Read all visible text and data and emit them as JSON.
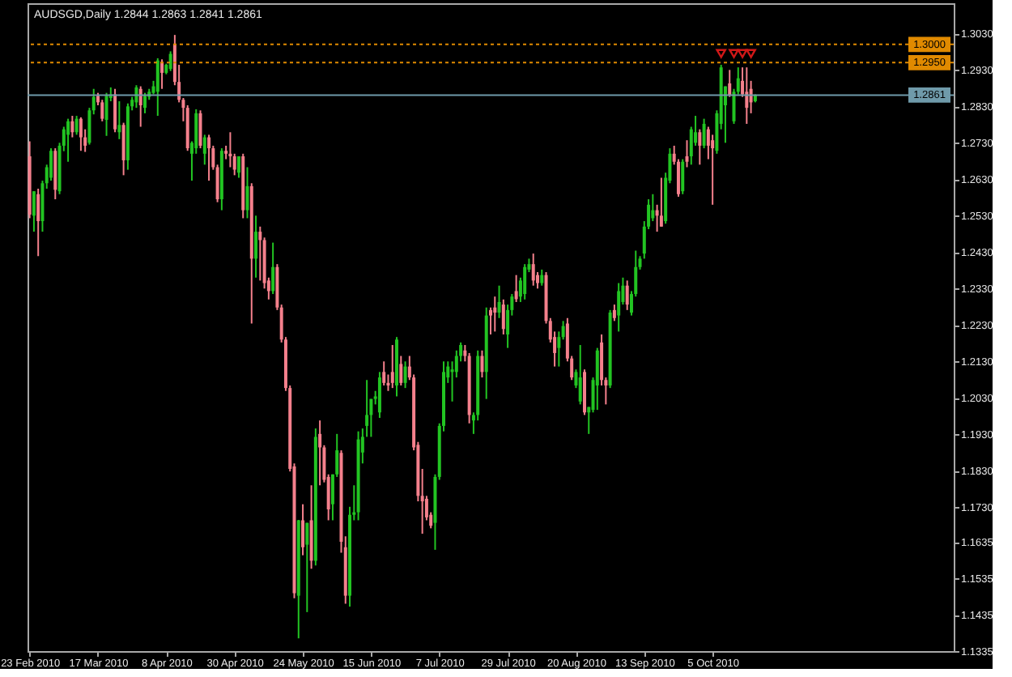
{
  "chart_data": {
    "type": "candlestick",
    "title": "AUDSGD,Daily  1.2844 1.2863 1.2841 1.2861",
    "categories": [
      "23 Feb 2010",
      null,
      null,
      null,
      null,
      null,
      null,
      null,
      null,
      null,
      null,
      null,
      null,
      null,
      null,
      null,
      "17 Mar 2010",
      null,
      null,
      null,
      null,
      null,
      null,
      null,
      null,
      null,
      null,
      null,
      null,
      null,
      null,
      null,
      "8 Apr 2010",
      null,
      null,
      null,
      null,
      null,
      null,
      null,
      null,
      null,
      null,
      null,
      null,
      null,
      null,
      null,
      "30 Apr 2010",
      null,
      null,
      null,
      null,
      null,
      null,
      null,
      null,
      null,
      null,
      null,
      null,
      null,
      null,
      null,
      "24 May 2010",
      null,
      null,
      null,
      null,
      null,
      null,
      null,
      null,
      null,
      null,
      null,
      null,
      null,
      null,
      null,
      "15 Jun 2010",
      null,
      null,
      null,
      null,
      null,
      null,
      null,
      null,
      null,
      null,
      null,
      null,
      null,
      null,
      null,
      "7 Jul 2010",
      null,
      null,
      null,
      null,
      null,
      null,
      null,
      null,
      null,
      null,
      null,
      null,
      null,
      null,
      null,
      "29 Jul 2010",
      null,
      null,
      null,
      null,
      null,
      null,
      null,
      null,
      null,
      null,
      null,
      null,
      null,
      null,
      null,
      "20 Aug 2010",
      null,
      null,
      null,
      null,
      null,
      null,
      null,
      null,
      null,
      null,
      null,
      null,
      null,
      null,
      null,
      "13 Sep 2010",
      null,
      null,
      null,
      null,
      null,
      null,
      null,
      null,
      null,
      null,
      null,
      null,
      null,
      null,
      null,
      "5 Oct 2010",
      null,
      null,
      null,
      null,
      null,
      null,
      null,
      null,
      null,
      null,
      null,
      null,
      null,
      null,
      null,
      null,
      null,
      null,
      null,
      null,
      null,
      null,
      null,
      null,
      null,
      null,
      null,
      null,
      null,
      null,
      null,
      null,
      null,
      null,
      null,
      null,
      null,
      null,
      null,
      null,
      null,
      null,
      null,
      null,
      null,
      null,
      null,
      null,
      null,
      null,
      null,
      null,
      null,
      null,
      null,
      null
    ],
    "ohlc": [
      [
        1.2693,
        1.2734,
        1.2523,
        1.2533
      ],
      [
        1.253,
        1.2597,
        1.2486,
        1.2597
      ],
      [
        1.2589,
        1.2604,
        1.2419,
        1.2515
      ],
      [
        1.2515,
        1.2626,
        1.2486,
        1.2619
      ],
      [
        1.2619,
        1.267,
        1.2604,
        1.2663
      ],
      [
        1.2634,
        1.2715,
        1.2626,
        1.2708
      ],
      [
        1.2708,
        1.2715,
        1.2575,
        1.2601
      ],
      [
        1.2597,
        1.273,
        1.2589,
        1.2722
      ],
      [
        1.2722,
        1.2774,
        1.2707,
        1.2767
      ],
      [
        1.2752,
        1.2796,
        1.2678,
        1.2789
      ],
      [
        1.2789,
        1.2804,
        1.2745,
        1.2759
      ],
      [
        1.2759,
        1.2804,
        1.2752,
        1.2796
      ],
      [
        1.2796,
        1.28,
        1.2708,
        1.2745
      ],
      [
        1.2745,
        1.2767,
        1.2705,
        1.2722
      ],
      [
        1.273,
        1.2826,
        1.2725,
        1.2819
      ],
      [
        1.2819,
        1.2878,
        1.2808,
        1.2856
      ],
      [
        1.2859,
        1.2867,
        1.2833,
        1.2841
      ],
      [
        1.2841,
        1.2848,
        1.2789,
        1.2796
      ],
      [
        1.2793,
        1.2867,
        1.2749,
        1.2859
      ],
      [
        1.2853,
        1.2882,
        1.2844,
        1.2863
      ],
      [
        1.2863,
        1.2878,
        1.2759,
        1.2767
      ],
      [
        1.2759,
        1.2844,
        1.274,
        1.2779
      ],
      [
        1.2779,
        1.2785,
        1.2641,
        1.2682
      ],
      [
        1.2682,
        1.2838,
        1.2656,
        1.283
      ],
      [
        1.283,
        1.2856,
        1.2819,
        1.2848
      ],
      [
        1.2841,
        1.2888,
        1.2826,
        1.2882
      ],
      [
        1.2878,
        1.2885,
        1.2774,
        1.2833
      ],
      [
        1.2826,
        1.2867,
        1.2811,
        1.2859
      ],
      [
        1.2856,
        1.2878,
        1.2848,
        1.287
      ],
      [
        1.2867,
        1.29,
        1.2863,
        1.2885
      ],
      [
        1.287,
        1.2962,
        1.2804,
        1.2956
      ],
      [
        1.2952,
        1.2959,
        1.2878,
        1.2922
      ],
      [
        1.2922,
        1.2947,
        1.2918,
        1.2944
      ],
      [
        1.2933,
        1.2981,
        1.2927,
        1.2974
      ],
      [
        1.3001,
        1.3026,
        1.2888,
        1.2897
      ],
      [
        1.2897,
        1.2944,
        1.2841,
        1.2848
      ],
      [
        1.2848,
        1.2853,
        1.2789,
        1.2826
      ],
      [
        1.2826,
        1.2833,
        1.2708,
        1.2715
      ],
      [
        1.27,
        1.2734,
        1.2626,
        1.273
      ],
      [
        1.2715,
        1.2822,
        1.27,
        1.2811
      ],
      [
        1.2811,
        1.2819,
        1.2715,
        1.2722
      ],
      [
        1.27,
        1.2752,
        1.267,
        1.2745
      ],
      [
        1.2745,
        1.2752,
        1.2626,
        1.2715
      ],
      [
        1.2715,
        1.2722,
        1.2656,
        1.2663
      ],
      [
        1.2663,
        1.267,
        1.2567,
        1.2575
      ],
      [
        1.2575,
        1.2715,
        1.2545,
        1.2708
      ],
      [
        1.2708,
        1.2722,
        1.2685,
        1.27
      ],
      [
        1.27,
        1.2759,
        1.2663,
        1.2693
      ],
      [
        1.2693,
        1.27,
        1.2641,
        1.2656
      ],
      [
        1.2648,
        1.2693,
        1.2634,
        1.2693
      ],
      [
        1.2693,
        1.27,
        1.2523,
        1.2545
      ],
      [
        1.2545,
        1.2663,
        1.2523,
        1.2611
      ],
      [
        1.2611,
        1.2619,
        1.2234,
        1.2412
      ],
      [
        1.2412,
        1.253,
        1.236,
        1.2486
      ],
      [
        1.2486,
        1.25,
        1.2352,
        1.2463
      ],
      [
        1.2463,
        1.247,
        1.233,
        1.2345
      ],
      [
        1.2352,
        1.236,
        1.23,
        1.2323
      ],
      [
        1.2323,
        1.2456,
        1.2315,
        1.2389
      ],
      [
        1.2389,
        1.2397,
        1.2271,
        1.2278
      ],
      [
        1.2278,
        1.2286,
        1.2182,
        1.219
      ],
      [
        1.219,
        1.2197,
        1.2049,
        1.2057
      ],
      [
        1.2057,
        1.2064,
        1.1828,
        1.1835
      ],
      [
        1.1842,
        1.185,
        1.148,
        1.1494
      ],
      [
        1.1487,
        1.1695,
        1.137,
        1.1694
      ],
      [
        1.1694,
        1.1738,
        1.1598,
        1.162
      ],
      [
        1.1627,
        1.1687,
        1.1442,
        1.1687
      ],
      [
        1.1694,
        1.179,
        1.1561,
        1.1583
      ],
      [
        1.1583,
        1.1946,
        1.157,
        1.1923
      ],
      [
        1.1931,
        1.1968,
        1.179,
        1.1894
      ],
      [
        1.1894,
        1.19,
        1.1798,
        1.1805
      ],
      [
        1.1813,
        1.182,
        1.1694,
        1.1724
      ],
      [
        1.1738,
        1.182,
        1.1694,
        1.182
      ],
      [
        1.182,
        1.1931,
        1.1813,
        1.1886
      ],
      [
        1.1879,
        1.1886,
        1.1605,
        1.1635
      ],
      [
        1.162,
        1.165,
        1.1465,
        1.1487
      ],
      [
        1.1487,
        1.1731,
        1.1457,
        1.1709
      ],
      [
        1.1709,
        1.179,
        1.1694,
        1.1716
      ],
      [
        1.1716,
        1.1938,
        1.1694,
        1.1916
      ],
      [
        1.188,
        1.1946,
        1.185,
        1.1923
      ],
      [
        1.1953,
        1.2079,
        1.1923,
        1.1983
      ],
      [
        1.1983,
        1.2027,
        1.1923,
        1.2027
      ],
      [
        1.2027,
        1.2049,
        1.2012,
        1.2034
      ],
      [
        1.199,
        1.2101,
        1.1975,
        1.2086
      ],
      [
        1.2101,
        1.213,
        1.2064,
        1.2071
      ],
      [
        1.2071,
        1.2094,
        1.2049,
        1.2064
      ],
      [
        1.2101,
        1.2175,
        1.2057,
        1.2071
      ],
      [
        1.2064,
        1.2197,
        1.2034,
        1.219
      ],
      [
        1.2123,
        1.2145,
        1.2064,
        1.2071
      ],
      [
        1.2071,
        1.213,
        1.2057,
        1.2116
      ],
      [
        1.2116,
        1.2145,
        1.2079,
        1.2086
      ],
      [
        1.2086,
        1.2094,
        1.1886,
        1.1894
      ],
      [
        1.1901,
        1.1909,
        1.1746,
        1.1761
      ],
      [
        1.1761,
        1.1835,
        1.1657,
        1.1746
      ],
      [
        1.1753,
        1.1761,
        1.1694,
        1.1702
      ],
      [
        1.1709,
        1.1716,
        1.1672,
        1.1679
      ],
      [
        1.1687,
        1.182,
        1.1613,
        1.1813
      ],
      [
        1.1813,
        1.196,
        1.1805,
        1.1953
      ],
      [
        1.1953,
        1.213,
        1.1938,
        1.2101
      ],
      [
        1.2086,
        1.213,
        1.2071,
        1.2116
      ],
      [
        1.2101,
        1.213,
        1.202,
        1.2108
      ],
      [
        1.2101,
        1.216,
        1.2086,
        1.2145
      ],
      [
        1.2145,
        1.2182,
        1.213,
        1.2175
      ],
      [
        1.216,
        1.2175,
        1.213,
        1.2145
      ],
      [
        1.2145,
        1.2153,
        1.196,
        1.1983
      ],
      [
        1.1968,
        1.199,
        1.1931,
        1.1983
      ],
      [
        1.1983,
        1.216,
        1.1968,
        1.2145
      ],
      [
        1.2145,
        1.216,
        1.2086,
        1.2101
      ],
      [
        1.2101,
        1.2278,
        1.2027,
        1.2256
      ],
      [
        1.2271,
        1.2278,
        1.2204,
        1.2256
      ],
      [
        1.2278,
        1.2308,
        1.2212,
        1.2264
      ],
      [
        1.2264,
        1.2338,
        1.2249,
        1.2293
      ],
      [
        1.2286,
        1.23,
        1.2204,
        1.2219
      ],
      [
        1.2204,
        1.2286,
        1.2167,
        1.2271
      ],
      [
        1.2271,
        1.2315,
        1.2256,
        1.2308
      ],
      [
        1.2323,
        1.2367,
        1.2293,
        1.2301
      ],
      [
        1.2308,
        1.236,
        1.2293,
        1.2352
      ],
      [
        1.2315,
        1.2397,
        1.23,
        1.2389
      ],
      [
        1.2382,
        1.2412,
        1.2375,
        1.2397
      ],
      [
        1.2397,
        1.2426,
        1.2338,
        1.2352
      ],
      [
        1.2367,
        1.2375,
        1.233,
        1.2345
      ],
      [
        1.2345,
        1.2382,
        1.2338,
        1.2367
      ],
      [
        1.2367,
        1.2375,
        1.2234,
        1.2241
      ],
      [
        1.2241,
        1.2249,
        1.2182,
        1.219
      ],
      [
        1.2197,
        1.2212,
        1.2116,
        1.2153
      ],
      [
        1.2167,
        1.2212,
        1.2116,
        1.2197
      ],
      [
        1.2197,
        1.2241,
        1.219,
        1.2227
      ],
      [
        1.2234,
        1.2249,
        1.213,
        1.2138
      ],
      [
        1.2138,
        1.2145,
        1.2079,
        1.2086
      ],
      [
        1.2064,
        1.2108,
        1.2057,
        1.2101
      ],
      [
        1.202,
        1.2175,
        1.2012,
        1.2086
      ],
      [
        1.2101,
        1.2108,
        1.1983,
        1.199
      ],
      [
        1.199,
        1.2005,
        1.1931,
        1.2005
      ],
      [
        1.1997,
        1.2086,
        1.199,
        1.2079
      ],
      [
        1.2064,
        1.2167,
        1.1997,
        1.216
      ],
      [
        1.2182,
        1.2204,
        1.2064,
        1.2079
      ],
      [
        1.2079,
        1.2086,
        1.2012,
        1.2064
      ],
      [
        1.2064,
        1.2271,
        1.2057,
        1.2264
      ],
      [
        1.2271,
        1.2286,
        1.2241,
        1.2249
      ],
      [
        1.2256,
        1.2345,
        1.2212,
        1.2323
      ],
      [
        1.2293,
        1.236,
        1.2286,
        1.2338
      ],
      [
        1.2338,
        1.2352,
        1.2271,
        1.2286
      ],
      [
        1.2264,
        1.2323,
        1.2256,
        1.2315
      ],
      [
        1.2315,
        1.2434,
        1.2308,
        1.2389
      ],
      [
        1.2389,
        1.2419,
        1.2382,
        1.2412
      ],
      [
        1.2426,
        1.2515,
        1.2412,
        1.25
      ],
      [
        1.25,
        1.2575,
        1.2493,
        1.256
      ],
      [
        1.2523,
        1.2589,
        1.2515,
        1.2545
      ],
      [
        1.2545,
        1.256,
        1.2486,
        1.253
      ],
      [
        1.253,
        1.2634,
        1.25,
        1.25
      ],
      [
        1.2515,
        1.2648,
        1.2508,
        1.2634
      ],
      [
        1.2626,
        1.2715,
        1.2619,
        1.27
      ],
      [
        1.27,
        1.2722,
        1.267,
        1.2678
      ],
      [
        1.2678,
        1.2685,
        1.2582,
        1.2589
      ],
      [
        1.2597,
        1.2685,
        1.2589,
        1.2678
      ],
      [
        1.2693,
        1.2737,
        1.2663,
        1.2678
      ],
      [
        1.2693,
        1.2774,
        1.267,
        1.2767
      ],
      [
        1.273,
        1.2804,
        1.2722,
        1.2759
      ],
      [
        1.2759,
        1.2767,
        1.267,
        1.2722
      ],
      [
        1.2722,
        1.2796,
        1.2715,
        1.2782
      ],
      [
        1.2767,
        1.2774,
        1.2685,
        1.2722
      ],
      [
        1.2737,
        1.2752,
        1.256,
        1.2715
      ],
      [
        1.2708,
        1.2819,
        1.27,
        1.2811
      ],
      [
        1.2782,
        1.2944,
        1.2767,
        1.2937
      ],
      [
        1.2833,
        1.2885,
        1.273,
        1.2885
      ],
      [
        1.2893,
        1.293,
        1.2856,
        1.286
      ],
      [
        1.2789,
        1.2878,
        1.2782,
        1.287
      ],
      [
        1.287,
        1.2937,
        1.2863,
        1.2907
      ],
      [
        1.29,
        1.2937,
        1.2856,
        1.2863
      ],
      [
        1.287,
        1.2937,
        1.2782,
        1.2826
      ],
      [
        1.2878,
        1.29,
        1.2811,
        1.2841
      ],
      [
        1.2844,
        1.2863,
        1.2841,
        1.2861
      ],
      null,
      null,
      null,
      null,
      null,
      null,
      null,
      null,
      null,
      null,
      null,
      null,
      null,
      null,
      null,
      null,
      null,
      null,
      null,
      null,
      null,
      null,
      null,
      null,
      null,
      null,
      null,
      null,
      null,
      null,
      null,
      null,
      null,
      null,
      null,
      null,
      null,
      null,
      null,
      null,
      null,
      null,
      null,
      null,
      null,
      null
    ],
    "colors": [
      "#f4808c",
      "#22c422",
      "#f4808c",
      "#22c422",
      "#22c422",
      "#22c422",
      "#f4808c",
      "#22c422",
      "#22c422",
      "#22c422",
      "#f4808c",
      "#22c422",
      "#f4808c",
      "#f4808c",
      "#22c422",
      "#22c422",
      "#f4808c",
      "#f4808c",
      "#22c422",
      "#22c422",
      "#f4808c",
      "#22c422",
      "#f4808c",
      "#22c422",
      "#22c422",
      "#22c422",
      "#f4808c",
      "#22c422",
      "#22c422",
      "#22c422",
      "#22c422",
      "#f4808c",
      "#22c422",
      "#22c422",
      "#f4808c",
      "#f4808c",
      "#f4808c",
      "#f4808c",
      "#22c422",
      "#22c422",
      "#f4808c",
      "#22c422",
      "#f4808c",
      "#f4808c",
      "#f4808c",
      "#22c422",
      "#f4808c",
      "#f4808c",
      "#f4808c",
      "#22c422",
      "#f4808c",
      "#22c422",
      "#f4808c",
      "#22c422",
      "#f4808c",
      "#f4808c",
      "#f4808c",
      "#22c422",
      "#f4808c",
      "#f4808c",
      "#f4808c",
      "#f4808c",
      "#f4808c",
      "#22c422",
      "#f4808c",
      "#22c422",
      "#f4808c",
      "#22c422",
      "#f4808c",
      "#f4808c",
      "#f4808c",
      "#22c422",
      "#22c422",
      "#f4808c",
      "#f4808c",
      "#22c422",
      "#22c422",
      "#22c422",
      "#22c422",
      "#22c422",
      "#22c422",
      "#22c422",
      "#22c422",
      "#f4808c",
      "#f4808c",
      "#f4808c",
      "#22c422",
      "#f4808c",
      "#22c422",
      "#f4808c",
      "#f4808c",
      "#f4808c",
      "#f4808c",
      "#f4808c",
      "#f4808c",
      "#22c422",
      "#22c422",
      "#22c422",
      "#22c422",
      "#22c422",
      "#22c422",
      "#22c422",
      "#f4808c",
      "#f4808c",
      "#22c422",
      "#22c422",
      "#f4808c",
      "#22c422",
      "#f4808c",
      "#f4808c",
      "#22c422",
      "#f4808c",
      "#22c422",
      "#22c422",
      "#f4808c",
      "#22c422",
      "#22c422",
      "#22c422",
      "#f4808c",
      "#f4808c",
      "#22c422",
      "#f4808c",
      "#f4808c",
      "#f4808c",
      "#22c422",
      "#22c422",
      "#f4808c",
      "#f4808c",
      "#22c422",
      "#22c422",
      "#f4808c",
      "#22c422",
      "#22c422",
      "#22c422",
      "#f4808c",
      "#f4808c",
      "#22c422",
      "#f4808c",
      "#22c422",
      "#22c422",
      "#f4808c",
      "#22c422",
      "#22c422",
      "#22c422",
      "#22c422",
      "#22c422",
      "#22c422",
      "#f4808c",
      "#f4808c",
      "#22c422",
      "#22c422",
      "#f4808c",
      "#f4808c",
      "#22c422",
      "#f4808c",
      "#22c422",
      "#22c422",
      "#f4808c",
      "#22c422",
      "#f4808c",
      "#f4808c",
      "#22c422",
      "#22c422",
      "#22c422",
      "#f4808c",
      "#22c422",
      "#22c422",
      "#f4808c",
      "#f4808c",
      "#f4808c",
      "#22c422",
      null,
      null,
      null,
      null,
      null,
      null,
      null,
      null,
      null,
      null,
      null,
      null,
      null,
      null,
      null,
      null,
      null,
      null,
      null,
      null,
      null,
      null,
      null,
      null,
      null,
      null,
      null,
      null,
      null,
      null,
      null,
      null,
      null,
      null,
      null,
      null,
      null,
      null,
      null,
      null,
      null,
      null,
      null,
      null,
      null,
      null
    ],
    "series": [
      {
        "type": "scatter",
        "color": "#d01818",
        "marker": "triangle",
        "values": [
          null,
          null,
          null,
          null,
          null,
          null,
          null,
          null,
          null,
          null,
          null,
          null,
          null,
          null,
          null,
          null,
          null,
          null,
          null,
          null,
          null,
          null,
          null,
          null,
          null,
          null,
          null,
          null,
          null,
          null,
          null,
          null,
          null,
          null,
          null,
          null,
          null,
          null,
          null,
          null,
          null,
          null,
          null,
          null,
          null,
          null,
          null,
          null,
          null,
          null,
          null,
          null,
          null,
          null,
          null,
          null,
          null,
          null,
          null,
          null,
          null,
          null,
          null,
          null,
          null,
          null,
          null,
          null,
          null,
          null,
          null,
          null,
          null,
          null,
          null,
          null,
          null,
          null,
          null,
          null,
          null,
          null,
          null,
          null,
          null,
          null,
          null,
          null,
          null,
          null,
          null,
          null,
          null,
          null,
          null,
          null,
          null,
          null,
          null,
          null,
          null,
          null,
          null,
          null,
          null,
          null,
          null,
          null,
          null,
          null,
          null,
          null,
          null,
          null,
          null,
          null,
          null,
          null,
          null,
          null,
          null,
          null,
          null,
          null,
          null,
          null,
          null,
          null,
          null,
          null,
          null,
          null,
          null,
          null,
          null,
          null,
          null,
          null,
          null,
          null,
          null,
          null,
          null,
          null,
          null,
          null,
          null,
          null,
          null,
          null,
          null,
          null,
          null,
          null,
          null,
          null,
          null,
          null,
          null,
          null,
          null,
          null,
          1.2975,
          null,
          null,
          1.2975,
          null,
          1.2975,
          null,
          1.2975,
          null,
          null,
          null,
          null,
          null,
          null,
          null,
          null,
          null,
          null,
          null,
          null,
          null,
          null,
          null,
          null,
          null,
          null,
          null,
          null,
          null,
          null,
          null,
          null,
          null,
          null,
          null,
          null,
          null,
          null,
          null,
          null,
          null,
          null,
          null,
          null,
          null,
          null,
          null,
          null,
          null,
          null,
          null,
          null,
          null,
          null,
          null
        ]
      }
    ],
    "ylim": [
      1.1335,
      1.3113
    ],
    "yticks": [
      {
        "value": 1.303,
        "label": "1.3030"
      },
      {
        "value": 1.293,
        "label": "1.2930"
      },
      {
        "value": 1.283,
        "label": "1.2830"
      },
      {
        "value": 1.273,
        "label": "1.2730"
      },
      {
        "value": 1.263,
        "label": "1.2630"
      },
      {
        "value": 1.253,
        "label": "1.2530"
      },
      {
        "value": 1.243,
        "label": "1.2430"
      },
      {
        "value": 1.233,
        "label": "1.2330"
      },
      {
        "value": 1.223,
        "label": "1.2230"
      },
      {
        "value": 1.213,
        "label": "1.2130"
      },
      {
        "value": 1.203,
        "label": "1.2030"
      },
      {
        "value": 1.193,
        "label": "1.1930"
      },
      {
        "value": 1.183,
        "label": "1.1830"
      },
      {
        "value": 1.173,
        "label": "1.1730"
      },
      1.1635,
      1.1535,
      1.1435,
      1.1335
    ],
    "ref_lines": [
      {
        "axis": "y",
        "value": 1.3,
        "label": "1.3000",
        "color": "#e08a00",
        "line_style": "dotted"
      },
      {
        "axis": "y",
        "value": 1.295,
        "label": "1.2950",
        "color": "#e08a00",
        "line_style": "dotted"
      },
      {
        "axis": "y",
        "value": 1.2861,
        "label": "1.2861",
        "color": "#6f9aaa",
        "line_style": "solid"
      }
    ]
  }
}
